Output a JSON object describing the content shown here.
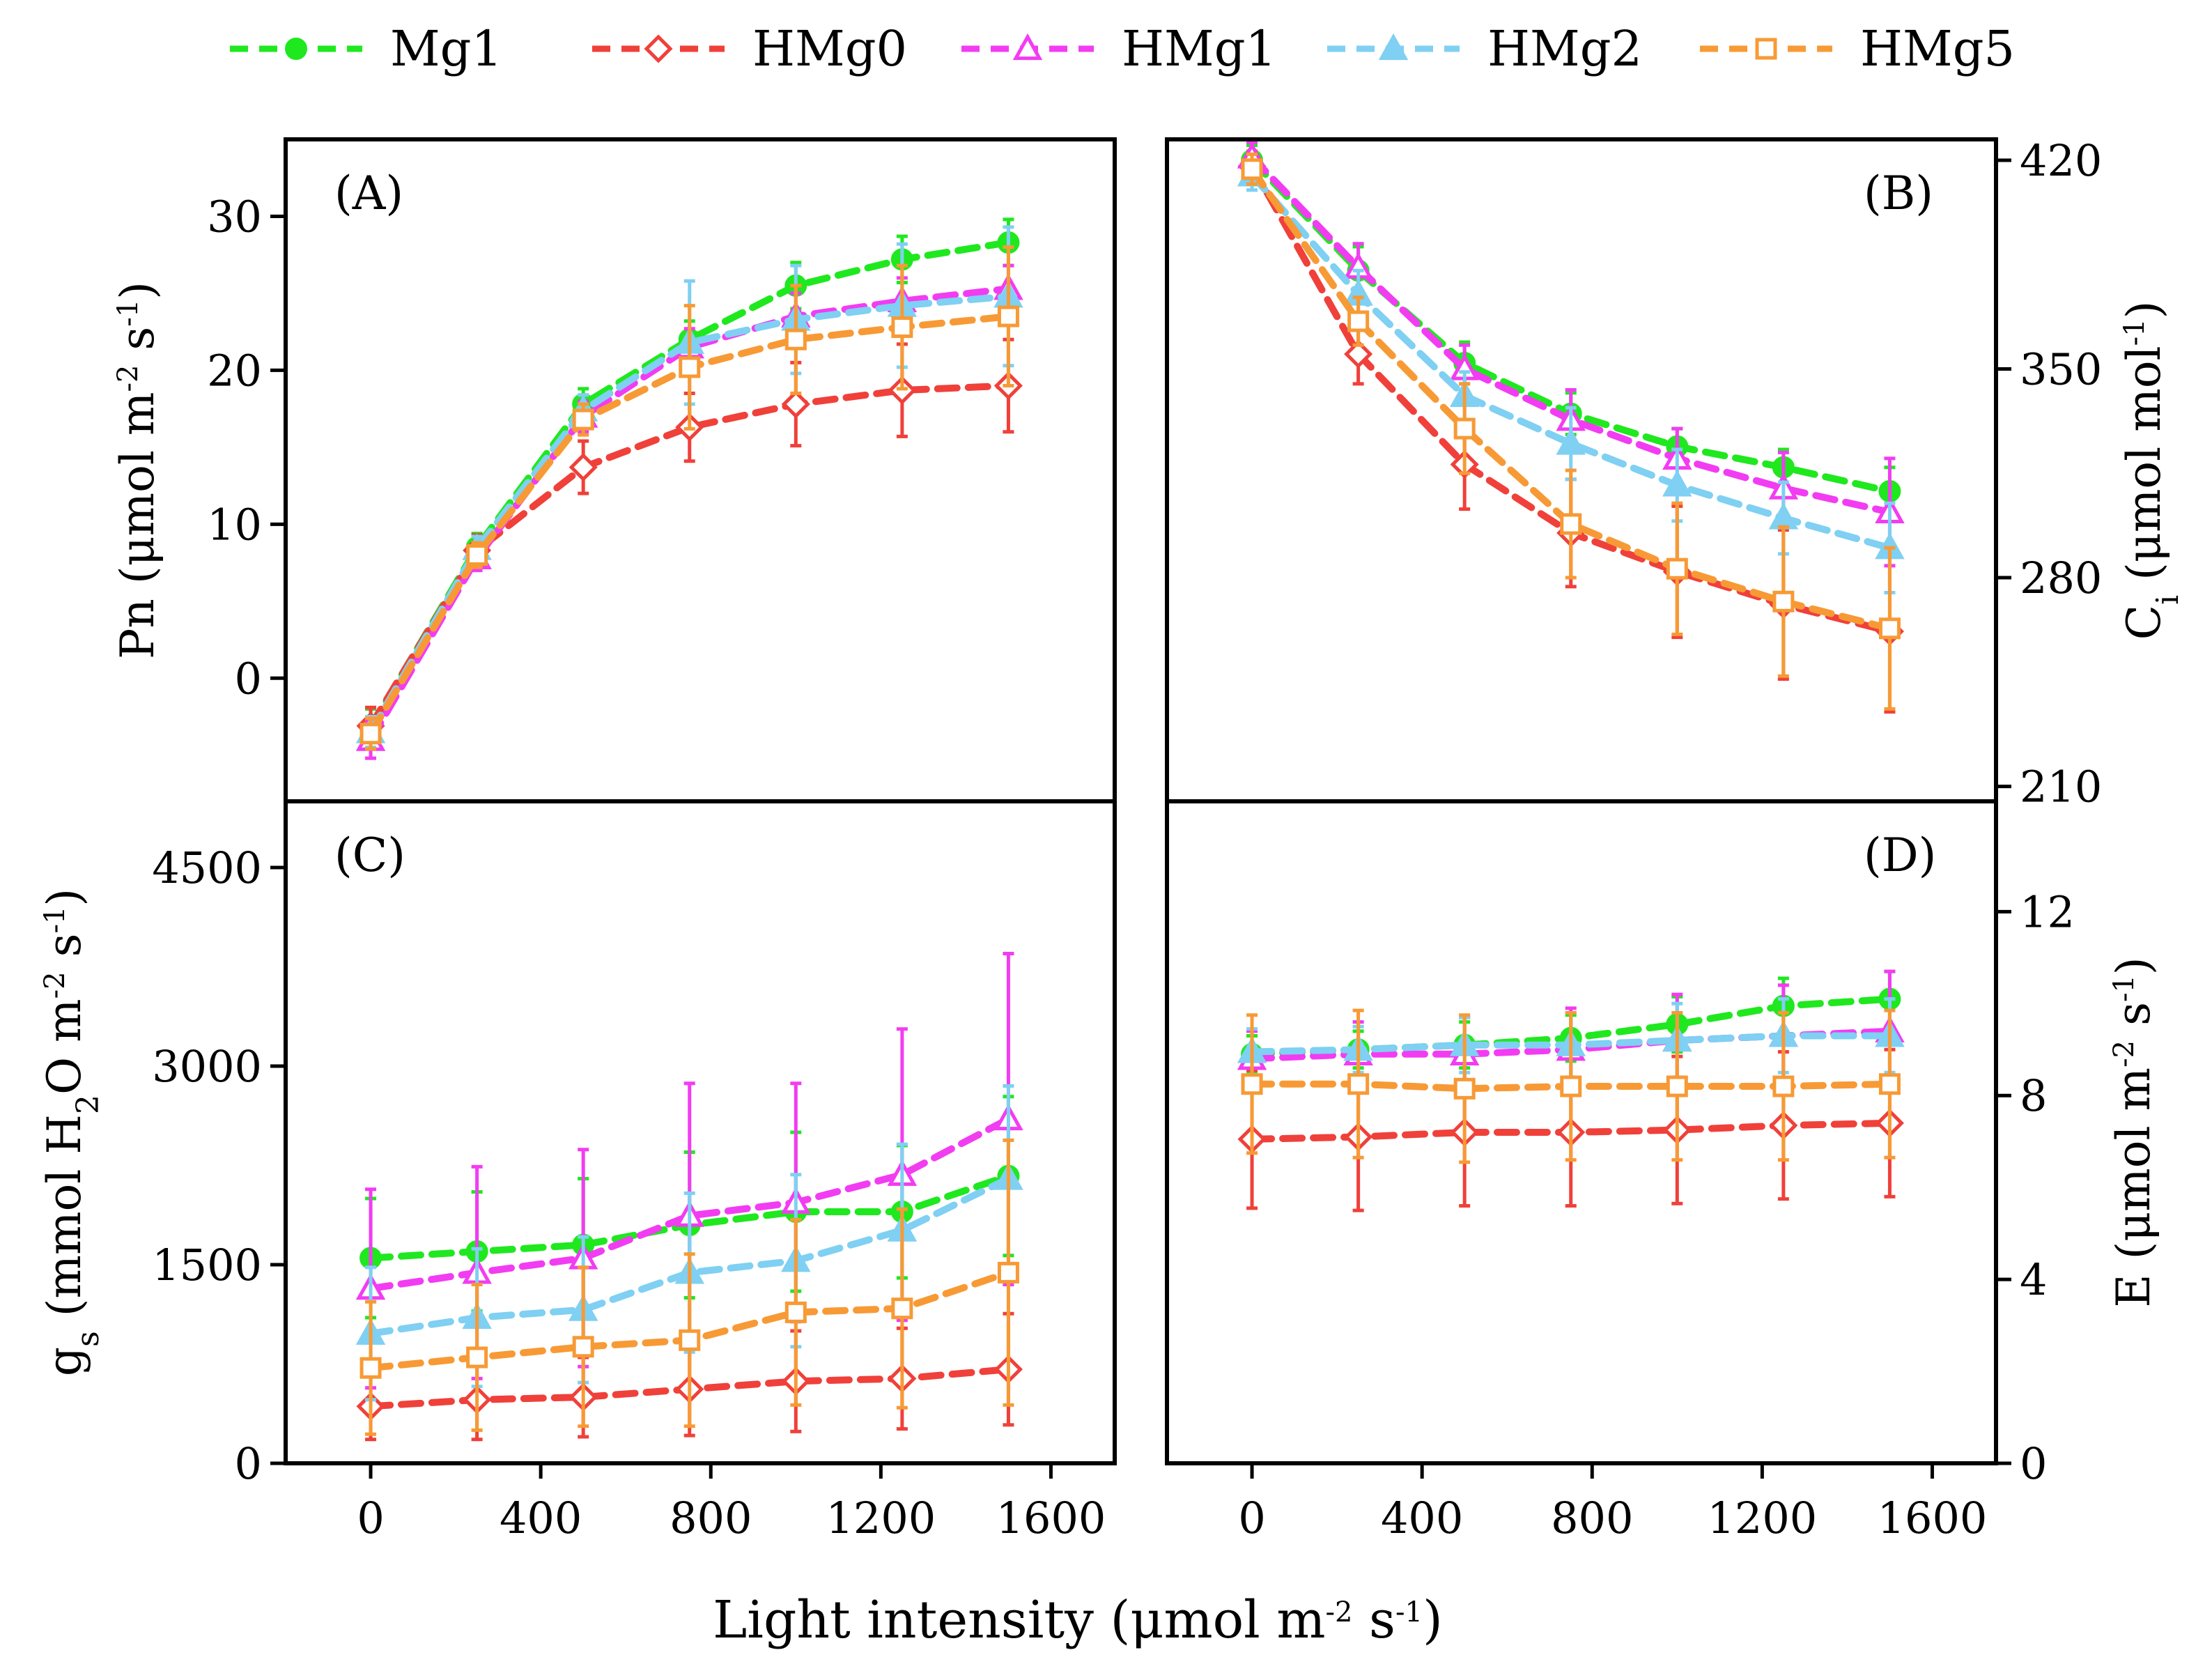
{
  "legend": {
    "entries": [
      {
        "name": "Mg1",
        "color": "#1fe81f",
        "marker": "circle-filled"
      },
      {
        "name": "HMg0",
        "color": "#f0403a",
        "marker": "diamond-open"
      },
      {
        "name": "HMg1",
        "color": "#f23cf2",
        "marker": "triangle-open"
      },
      {
        "name": "HMg2",
        "color": "#7fd0f2",
        "marker": "triangle-filled"
      },
      {
        "name": "HMg5",
        "color": "#f79a35",
        "marker": "square-open"
      }
    ]
  },
  "xaxis": {
    "label_main": "Light intensity (μmol m",
    "label_sup1": "-2",
    "label_mid": " s",
    "label_sup2": "-1",
    "label_end": ")",
    "ticks": [
      "0",
      "400",
      "800",
      "1200",
      "1600"
    ]
  },
  "chart_data": [
    {
      "panel": "(A)",
      "type": "line",
      "side": "left",
      "ylabel": "Pn (μmol m-2 s-1)",
      "ylabel_main": "Pn (μmol m",
      "ylabel_sup1": "-2",
      "ylabel_mid": " s",
      "ylabel_sup2": "-1",
      "ylabel_end": ")",
      "xlim": [
        -200,
        1750
      ],
      "ylim": [
        -8,
        35
      ],
      "yticks": [
        "0",
        "10",
        "20",
        "30"
      ],
      "x": [
        0,
        250,
        500,
        750,
        1000,
        1250,
        1500
      ],
      "series": [
        {
          "name": "Mg1",
          "values": [
            -3.2,
            8.5,
            17.8,
            22,
            25.5,
            27.2,
            28.3
          ],
          "err": [
            1.2,
            0.9,
            1,
            1.2,
            1.5,
            1.5,
            1.5
          ]
        },
        {
          "name": "HMg0",
          "values": [
            -3.1,
            8.3,
            13.7,
            16.3,
            17.8,
            18.7,
            19
          ],
          "err": [
            1.2,
            1,
            1.7,
            2.2,
            2.7,
            3,
            3
          ]
        },
        {
          "name": "HMg1",
          "values": [
            -4,
            7.8,
            17,
            21.5,
            23.5,
            24.5,
            25.3
          ],
          "err": [
            1.2,
            0.8,
            1,
            1.2,
            1.5,
            1.5,
            1.5
          ]
        },
        {
          "name": "HMg2",
          "values": [
            -3.5,
            8.4,
            17.4,
            21.8,
            23.3,
            24.2,
            24.8
          ],
          "err": [
            1,
            0.8,
            1,
            4,
            3.5,
            4,
            4.5
          ]
        },
        {
          "name": "HMg5",
          "values": [
            -3.6,
            8,
            16.8,
            20.2,
            22,
            22.8,
            23.5
          ],
          "err": [
            1,
            0.8,
            1,
            4,
            3.5,
            4,
            4.5
          ]
        }
      ]
    },
    {
      "panel": "(B)",
      "type": "line",
      "side": "right",
      "ylabel": "Ci (μmol mol-1)",
      "ylabel_c": "C",
      "ylabel_sub": "i",
      "ylabel_main": "  (μmol mol",
      "ylabel_sup": "-1",
      "ylabel_end": ")",
      "xlim": [
        -200,
        1750
      ],
      "ylim": [
        205,
        427
      ],
      "yticks": [
        "210",
        "280",
        "350",
        "420"
      ],
      "x": [
        0,
        250,
        500,
        750,
        1000,
        1250,
        1500
      ],
      "series": [
        {
          "name": "Mg1",
          "values": [
            420,
            383,
            352,
            335,
            324,
            317,
            309
          ],
          "err": [
            5,
            8,
            7,
            7,
            6,
            6,
            8
          ]
        },
        {
          "name": "HMg0",
          "values": [
            418,
            355,
            318,
            295,
            282,
            271,
            262
          ],
          "err": [
            5,
            10,
            15,
            18,
            22,
            25,
            27
          ]
        },
        {
          "name": "HMg1",
          "values": [
            421,
            384,
            350,
            333,
            320,
            310,
            302
          ],
          "err": [
            5,
            8,
            8,
            10,
            10,
            12,
            18
          ]
        },
        {
          "name": "HMg2",
          "values": [
            415,
            375,
            341,
            325,
            311,
            300,
            290
          ],
          "err": [
            5,
            8,
            8,
            12,
            12,
            12,
            15
          ]
        },
        {
          "name": "HMg5",
          "values": [
            417,
            366,
            330,
            298,
            283,
            272,
            263
          ],
          "err": [
            5,
            8,
            15,
            18,
            22,
            25,
            27
          ]
        }
      ]
    },
    {
      "panel": "(C)",
      "type": "line",
      "side": "left",
      "ylabel": "gs (mmol H2O m-2 s-1)",
      "ylabel_g": "g",
      "ylabel_sub": "s",
      "ylabel_main": "  (mmol H",
      "ylabel_sub2": "2",
      "ylabel_mid": "O m",
      "ylabel_sup1": "-2",
      "ylabel_mid2": " s",
      "ylabel_sup2": "-1",
      "ylabel_end": ")",
      "xlim": [
        -200,
        1750
      ],
      "ylim": [
        0,
        5000
      ],
      "yticks": [
        "0",
        "1500",
        "3000",
        "4500"
      ],
      "x": [
        0,
        250,
        500,
        750,
        1000,
        1250,
        1500
      ],
      "series": [
        {
          "name": "Mg1",
          "values": [
            1550,
            1600,
            1650,
            1800,
            1900,
            1900,
            2170
          ],
          "err": [
            450,
            450,
            500,
            550,
            600,
            500,
            600
          ]
        },
        {
          "name": "HMg0",
          "values": [
            430,
            480,
            500,
            560,
            620,
            640,
            710
          ],
          "err": [
            250,
            300,
            300,
            350,
            380,
            380,
            420
          ]
        },
        {
          "name": "HMg1",
          "values": [
            1320,
            1440,
            1550,
            1870,
            1970,
            2180,
            2600
          ],
          "err": [
            750,
            800,
            820,
            1000,
            900,
            1100,
            1250
          ]
        },
        {
          "name": "HMg2",
          "values": [
            980,
            1100,
            1160,
            1440,
            1530,
            1760,
            2150
          ],
          "err": [
            500,
            520,
            550,
            600,
            650,
            650,
            700
          ]
        },
        {
          "name": "HMg5",
          "values": [
            720,
            800,
            880,
            930,
            1140,
            1170,
            1440
          ],
          "err": [
            500,
            550,
            600,
            650,
            700,
            750,
            1000
          ]
        }
      ]
    },
    {
      "panel": "(D)",
      "type": "line",
      "side": "right",
      "ylabel": "E (μmol m-2 s-1)",
      "ylabel_main": "E  (μmol m",
      "ylabel_sup1": "-2",
      "ylabel_mid": " s",
      "ylabel_sup2": "-1",
      "ylabel_end": ")",
      "xlim": [
        -200,
        1750
      ],
      "ylim": [
        0,
        14.4
      ],
      "yticks": [
        "0",
        "4",
        "8",
        "12"
      ],
      "x": [
        0,
        250,
        500,
        750,
        1000,
        1250,
        1500
      ],
      "series": [
        {
          "name": "Mg1",
          "values": [
            8.9,
            9,
            9.1,
            9.25,
            9.55,
            9.95,
            10.1
          ],
          "err": [
            0.4,
            0.4,
            0.5,
            0.5,
            0.6,
            0.6,
            0.6
          ]
        },
        {
          "name": "HMg0",
          "values": [
            7.05,
            7.1,
            7.2,
            7.2,
            7.25,
            7.35,
            7.4
          ],
          "err": [
            1.5,
            1.6,
            1.6,
            1.6,
            1.6,
            1.6,
            1.6
          ]
        },
        {
          "name": "HMg1",
          "values": [
            8.8,
            8.9,
            8.9,
            9,
            9.2,
            9.3,
            9.4
          ],
          "err": [
            0.6,
            0.7,
            0.8,
            0.9,
            1,
            1.1,
            1.3
          ]
        },
        {
          "name": "HMg2",
          "values": [
            8.95,
            9,
            9.1,
            9.1,
            9.2,
            9.3,
            9.3
          ],
          "err": [
            0.5,
            0.5,
            0.6,
            0.7,
            0.8,
            0.8,
            0.8
          ]
        },
        {
          "name": "HMg5",
          "values": [
            8.25,
            8.25,
            8.15,
            8.2,
            8.2,
            8.2,
            8.25
          ],
          "err": [
            1.5,
            1.6,
            1.6,
            1.6,
            1.6,
            1.6,
            1.6
          ]
        }
      ]
    }
  ]
}
